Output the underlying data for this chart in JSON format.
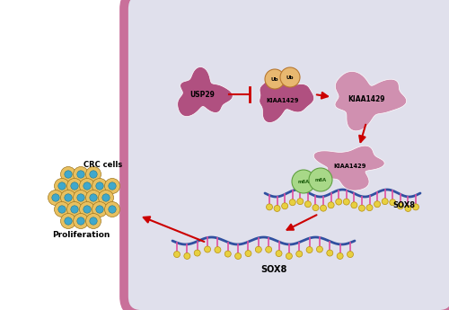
{
  "background_color": "#ffffff",
  "cell_fill": "#e0e0ec",
  "cell_border": "#c9709a",
  "protein_color_dark": "#b05080",
  "protein_color_light": "#d090b0",
  "ubiquitin_color": "#e8b870",
  "m6A_color": "#a8d888",
  "arrow_color": "#cc0000",
  "mrna_backbone": "#3050a0",
  "mrna_spike": "#e050a0",
  "mrna_ball": "#e8d040",
  "cell_outer_color": "#e8c060",
  "cell_inner_color": "#40a8cc",
  "labels": {
    "USP29": "USP29",
    "KIAA1429": "KIAA1429",
    "Ub": "Ub",
    "m6A": "m6A",
    "SOX8": "SOX8",
    "CRC": "CRC cells",
    "Proliferation": "Proliferation"
  }
}
